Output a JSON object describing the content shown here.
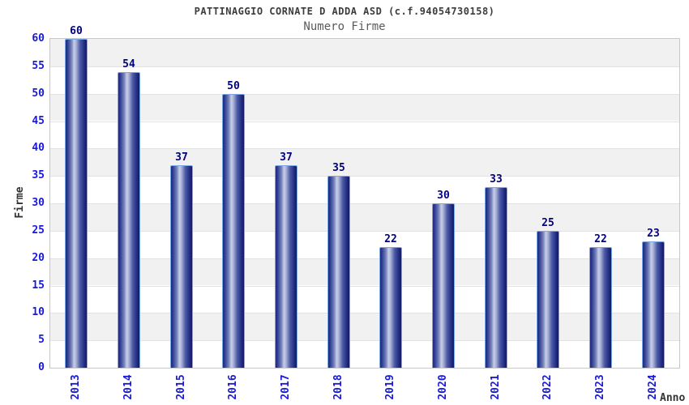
{
  "chart_data": {
    "type": "bar",
    "title": "PATTINAGGIO CORNATE D ADDA ASD (c.f.94054730158)",
    "subtitle": "Numero Firme",
    "xlabel": "Anno",
    "ylabel": "Firme",
    "categories": [
      "2013",
      "2014",
      "2015",
      "2016",
      "2017",
      "2018",
      "2019",
      "2020",
      "2021",
      "2022",
      "2023",
      "2024"
    ],
    "values": [
      60,
      54,
      37,
      50,
      37,
      35,
      22,
      30,
      33,
      25,
      22,
      23
    ],
    "ylim": [
      0,
      60
    ],
    "ytick_step": 5,
    "grid": "horizontal-bands",
    "legend": "none",
    "colors": {
      "title_text": "#3c3c3c",
      "subtitle_text": "#5a5a5a",
      "axis_title_text": "#333333",
      "tick_label_blue": "#1a1ad6",
      "value_label_navy": "#000082",
      "bar_border": "#7ba6e8",
      "bar_dark": "#202b7c",
      "bar_light": "#c9cfe8",
      "band_gray": "#f1f1f1",
      "band_white": "#ffffff",
      "grid_line": "#e2e2e2",
      "plot_border": "#c8c8c8",
      "background": "#ffffff"
    }
  }
}
